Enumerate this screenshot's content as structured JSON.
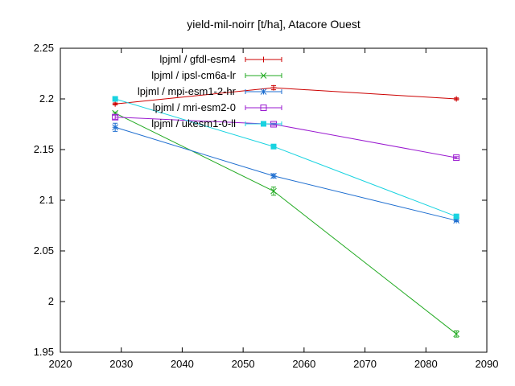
{
  "chart_data": {
    "type": "line",
    "title": "yield-mil-noirr [t/ha], Atacore Ouest",
    "xlabel": "",
    "ylabel": "",
    "xlim": [
      2020,
      2090
    ],
    "ylim": [
      1.95,
      2.25
    ],
    "x_ticks": [
      "2020",
      "2030",
      "2040",
      "2050",
      "2060",
      "2070",
      "2080",
      "2090"
    ],
    "y_ticks": [
      "1.95",
      "2",
      "2.05",
      "2.1",
      "2.15",
      "2.2",
      "2.25"
    ],
    "grid": false,
    "legend_position": "top-center",
    "series": [
      {
        "name": "lpjml / gfdl-esm4",
        "color": "#cc0000",
        "marker": "plus",
        "x": [
          2029,
          2055,
          2085
        ],
        "y": [
          2.195,
          2.211,
          2.2
        ],
        "err": [
          0.001,
          0.002,
          0.001
        ]
      },
      {
        "name": "lpjml / ipsl-cm6a-lr",
        "color": "#22aa22",
        "marker": "cross",
        "x": [
          2029,
          2055,
          2085
        ],
        "y": [
          2.186,
          2.109,
          1.968
        ],
        "err": [
          0.001,
          0.004,
          0.003
        ]
      },
      {
        "name": "lpjml / mpi-esm1-2-hr",
        "color": "#1f6fd0",
        "marker": "star",
        "x": [
          2029,
          2055,
          2085
        ],
        "y": [
          2.172,
          2.124,
          2.08
        ],
        "err": [
          0.004,
          0.002,
          0.001
        ]
      },
      {
        "name": "lpjml / mri-esm2-0",
        "color": "#9a1ad0",
        "marker": "open-square",
        "x": [
          2029,
          2055,
          2085
        ],
        "y": [
          2.182,
          2.175,
          2.142
        ],
        "err": [
          0.002,
          0.001,
          0.001
        ]
      },
      {
        "name": "lpjml / ukesm1-0-ll",
        "color": "#19d3e0",
        "marker": "filled-square",
        "x": [
          2029,
          2055,
          2085
        ],
        "y": [
          2.2,
          2.153,
          2.084
        ],
        "err": [
          0.001,
          0.001,
          0.001
        ]
      }
    ]
  }
}
